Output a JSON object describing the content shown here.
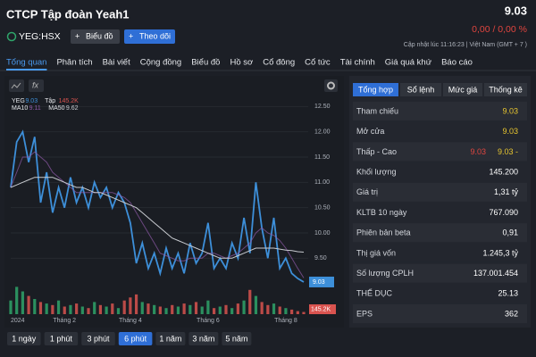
{
  "header": {
    "company": "CTCP Tập đoàn Yeah1",
    "price": "9.03",
    "ticker": "YEG:HSX",
    "buttons": [
      "Biểu đồ",
      "Theo dõi"
    ],
    "change": "0,00 / 0,00 %",
    "updated": "Cập nhật lúc   11:16:23 | Việt Nam (GMT + 7 )"
  },
  "tabs": [
    "Tổng quan",
    "Phân tích",
    "Bài viết",
    "Cộng đồng",
    "Biểu đồ",
    "Hồ sơ",
    "Cổ đông",
    "Cổ tức",
    "Tài chính",
    "Giá quá khứ",
    "Báo cáo"
  ],
  "active_tab": 0,
  "chart_data": {
    "type": "line",
    "categories": [
      "2024",
      null,
      null,
      null,
      null,
      null,
      null,
      null,
      null,
      "Tháng 2",
      null,
      null,
      null,
      null,
      null,
      null,
      null,
      null,
      null,
      null,
      "Tháng 4",
      null,
      null,
      null,
      null,
      null,
      null,
      null,
      null,
      null,
      null,
      null,
      null,
      "Tháng 6",
      null,
      null,
      null,
      null,
      null,
      null,
      null,
      null,
      null,
      null,
      null,
      null,
      "Tháng 8",
      null,
      null,
      null
    ],
    "series": [
      {
        "name": "YEG",
        "legend_value": "9.03",
        "color": "#3d8fd9",
        "values": [
          10.9,
          11.8,
          12.0,
          11.4,
          11.9,
          10.6,
          11.2,
          10.4,
          10.9,
          10.5,
          11.1,
          10.6,
          10.9,
          10.5,
          11.0,
          10.7,
          10.9,
          10.5,
          10.8,
          10.6,
          10.2,
          9.4,
          9.8,
          9.3,
          9.6,
          9.2,
          9.7,
          9.3,
          9.6,
          9.2,
          9.8,
          9.4,
          9.6,
          10.2,
          9.3,
          9.5,
          9.3,
          9.8,
          9.5,
          10.3,
          9.6,
          11.0,
          10.1,
          9.5,
          10.3,
          9.3,
          9.5,
          9.2,
          9.1,
          9.03
        ]
      },
      {
        "name": "MA10",
        "legend_value": "9.11",
        "color": "#8e5aa8",
        "values": [
          10.9,
          11.2,
          11.5,
          11.5,
          11.6,
          11.5,
          11.4,
          11.2,
          11.1,
          11.0,
          10.9,
          10.8,
          10.8,
          10.8,
          10.8,
          10.8,
          10.8,
          10.8,
          10.75,
          10.7,
          10.6,
          10.4,
          10.2,
          10.0,
          9.8,
          9.6,
          9.55,
          9.5,
          9.45,
          9.45,
          9.5,
          9.5,
          9.5,
          9.6,
          9.6,
          9.55,
          9.5,
          9.55,
          9.6,
          9.7,
          9.8,
          10.0,
          10.1,
          10.0,
          9.95,
          9.85,
          9.7,
          9.5,
          9.3,
          9.11
        ]
      },
      {
        "name": "MA50",
        "legend_value": "9.62",
        "color": "#c8cbd0",
        "values": [
          10.9,
          10.95,
          11.0,
          11.05,
          11.1,
          11.1,
          11.1,
          11.1,
          11.05,
          11.0,
          10.95,
          10.9,
          10.9,
          10.85,
          10.8,
          10.8,
          10.75,
          10.7,
          10.65,
          10.6,
          10.55,
          10.5,
          10.4,
          10.3,
          10.2,
          10.1,
          10.0,
          9.9,
          9.85,
          9.8,
          9.75,
          9.7,
          9.65,
          9.6,
          9.55,
          9.5,
          9.5,
          9.5,
          9.55,
          9.6,
          9.65,
          9.7,
          9.7,
          9.7,
          9.7,
          9.68,
          9.66,
          9.65,
          9.63,
          9.62
        ]
      },
      {
        "name": "Tập",
        "legend_value": "145.2K",
        "type": "bar",
        "axis": "y2",
        "color": "#2fa56a",
        "down_color": "#d9534f",
        "values": [
          900,
          1800,
          1500,
          1200,
          1000,
          800,
          700,
          600,
          900,
          500,
          600,
          700,
          500,
          400,
          800,
          600,
          500,
          700,
          400,
          900,
          1100,
          1300,
          800,
          700,
          600,
          500,
          400,
          600,
          500,
          700,
          600,
          800,
          500,
          900,
          400,
          500,
          600,
          400,
          700,
          900,
          1600,
          1200,
          800,
          600,
          700,
          500,
          400,
          300,
          200,
          145.2
        ]
      }
    ],
    "ylim": [
      9.1,
      12.7
    ],
    "yticks": [
      {
        "value": 12.5,
        "label": "12.50"
      },
      {
        "value": 12,
        "label": "12.00"
      },
      {
        "value": 11.5,
        "label": "11.50"
      },
      {
        "value": 11,
        "label": "11.00"
      },
      {
        "value": 10.5,
        "label": "10.50"
      },
      {
        "value": 10,
        "label": "10.00"
      },
      {
        "value": 9.5,
        "label": "9.50"
      }
    ],
    "y2lim": [
      0,
      2000
    ],
    "grid": true
  },
  "range_buttons": [
    "1 ngày",
    "1 phút",
    "3 phút",
    "6 phút",
    "1 năm",
    "3 năm",
    "5 năm"
  ],
  "active_range": 3,
  "stats": {
    "tabs": [
      "Tổng hợp",
      "Sổ lệnh",
      "Mức giá",
      "Thống kê"
    ],
    "active_tab": 0,
    "rows": [
      {
        "label": "Tham chiếu",
        "values": [
          "9.03"
        ],
        "colors": [
          "#e8c630"
        ]
      },
      {
        "label": "Mở cửa",
        "values": [
          "9.03"
        ],
        "colors": [
          "#e8c630"
        ]
      },
      {
        "label": "Thấp - Cao",
        "values": [
          "9.03",
          "9.03 -"
        ],
        "colors": [
          "#e0453f",
          "#e8c630"
        ]
      },
      {
        "label": "Khối lượng",
        "values": [
          "145.200"
        ]
      },
      {
        "label": "Giá trị",
        "values": [
          "1,31 tỷ"
        ]
      },
      {
        "label": "KLTB 10 ngày",
        "values": [
          "767.090"
        ]
      },
      {
        "label": "Phiên bản beta",
        "values": [
          "0,91"
        ]
      },
      {
        "label": "Thị giá vốn",
        "values": [
          "1.245,3 tỷ"
        ]
      },
      {
        "label": "Số lượng CPLH",
        "values": [
          "137.001.454"
        ]
      },
      {
        "label": "THẾ DỤC",
        "values": [
          "25.13"
        ]
      },
      {
        "label": "EPS",
        "values": [
          "362"
        ]
      }
    ]
  }
}
